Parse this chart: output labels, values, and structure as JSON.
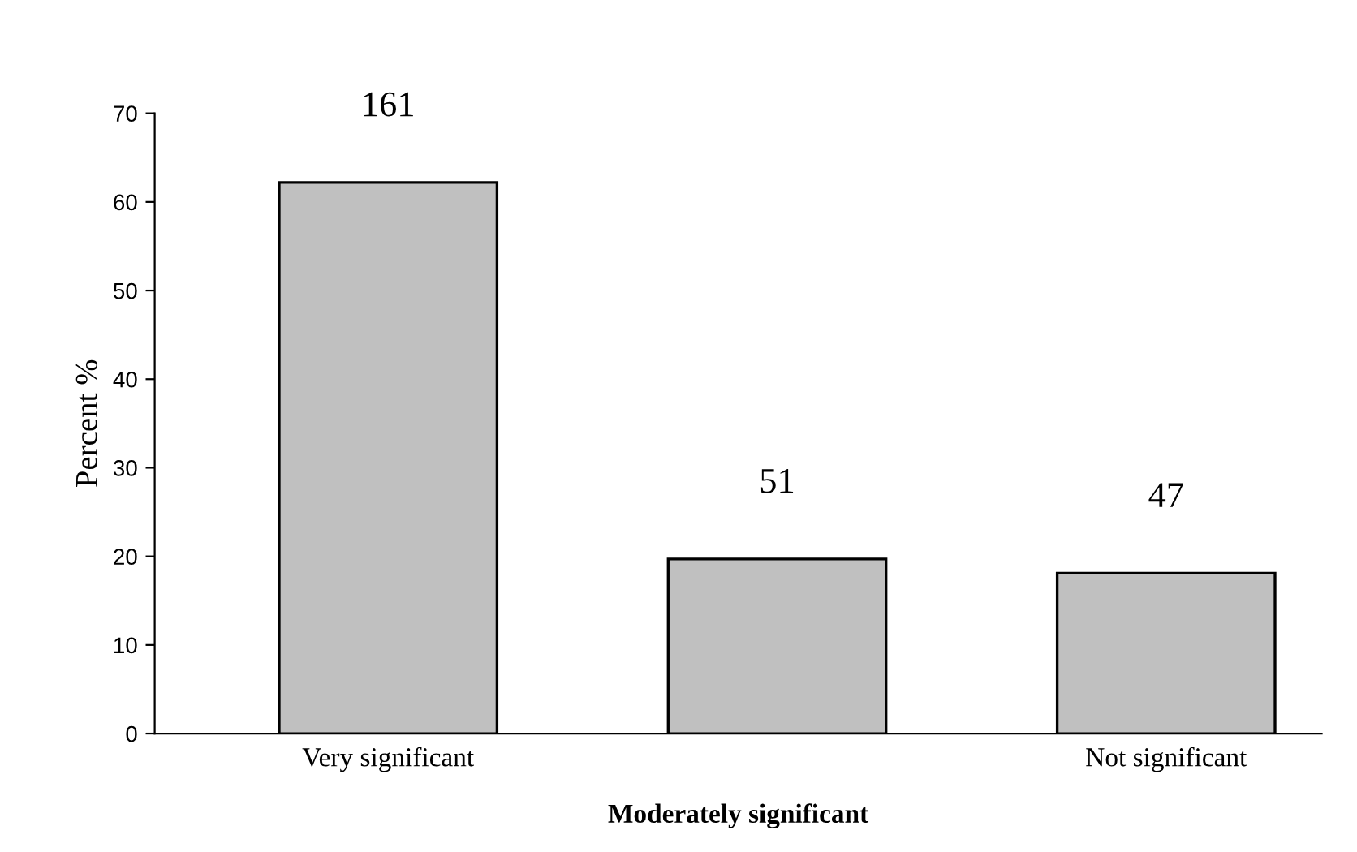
{
  "chart_data": {
    "type": "bar",
    "categories": [
      "Very significant",
      null,
      "Not significant"
    ],
    "values": [
      62.2,
      19.7,
      18.1
    ],
    "annotations": [
      "161",
      "51",
      "47"
    ],
    "color": "#c0c0c0",
    "xlabel": "Moderately significant",
    "ylabel": "Percent %",
    "ylim": [
      0,
      70
    ],
    "yticks": [
      0,
      10,
      20,
      30,
      40,
      50,
      60,
      70
    ],
    "grid": false,
    "legend": false
  }
}
